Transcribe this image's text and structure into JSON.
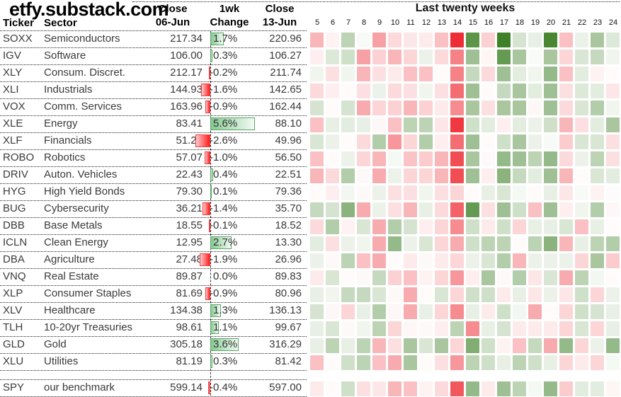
{
  "title": "etfy.substack.com",
  "header": {
    "ticker": "Ticker",
    "sector": "Sector",
    "close1_l1": "Close",
    "close1_l2": "06-Jun",
    "change_l1": "1wk",
    "change_l2": "Change",
    "close2_l1": "Close",
    "close2_l2": "13-Jun",
    "heatmap_title": "Last twenty weeks"
  },
  "weeks": [
    "5",
    "6",
    "7",
    "8",
    "9",
    "10",
    "11",
    "12",
    "13",
    "14",
    "15",
    "16",
    "17",
    "18",
    "19",
    "20",
    "21",
    "22",
    "23",
    "24"
  ],
  "colors": {
    "heat_pos": "#3f8128",
    "heat_neg": "#ee2e36",
    "bar_pos_border": "#5aa668",
    "bar_pos_from": "#86ca92",
    "bar_pos_to": "#f3faf4",
    "bar_neg_border": "#f03e3e",
    "bar_neg_from": "#ff1e1e",
    "bar_neg_to": "#ffccce"
  },
  "chart_data": {
    "type": "heatmap",
    "title": "Last twenty weeks",
    "x_labels": [
      "5",
      "6",
      "7",
      "8",
      "9",
      "10",
      "11",
      "12",
      "13",
      "14",
      "15",
      "16",
      "17",
      "18",
      "19",
      "20",
      "21",
      "22",
      "23",
      "24"
    ],
    "note": "cell values are weekly % change intensity, -1 strong red to +1 strong green"
  },
  "rows": [
    {
      "ticker": "SOXX",
      "sector": "Semiconductors",
      "close1": "217.34",
      "change": 1.7,
      "change_label": "1.7%",
      "close2": "220.96",
      "gap_before": false,
      "heat": [
        -0.35,
        -0.06,
        0.35,
        0.04,
        -0.45,
        -0.18,
        -0.12,
        -0.1,
        -0.3,
        -1.0,
        0.85,
        -0.22,
        1.0,
        0.22,
        0.12,
        0.95,
        -0.3,
        0.1,
        0.45,
        0.18
      ]
    },
    {
      "ticker": "IGV",
      "sector": "Software",
      "close1": "106.00",
      "change": 0.3,
      "change_label": "0.3%",
      "close2": "106.27",
      "gap_before": false,
      "heat": [
        -0.08,
        0.18,
        0.25,
        -0.45,
        -0.22,
        -0.35,
        -0.2,
        0.1,
        -0.18,
        -0.6,
        0.5,
        -0.05,
        0.8,
        0.45,
        0.03,
        0.45,
        -0.2,
        0.2,
        0.3,
        0.08
      ]
    },
    {
      "ticker": "XLY",
      "sector": "Consum. Discret.",
      "close1": "212.17",
      "change": -0.2,
      "change_label": "-0.2%",
      "close2": "211.74",
      "gap_before": false,
      "heat": [
        0.08,
        -0.15,
        0.08,
        -0.35,
        -0.15,
        -0.1,
        -0.3,
        -0.3,
        -0.02,
        -0.6,
        0.3,
        -0.18,
        0.5,
        0.15,
        0.08,
        0.55,
        -0.3,
        0.15,
        -0.06,
        -0.02
      ]
    },
    {
      "ticker": "XLI",
      "sector": "Industrials",
      "close1": "144.93",
      "change": -1.6,
      "change_label": "-1.6%",
      "close2": "142.65",
      "gap_before": false,
      "heat": [
        -0.18,
        -0.08,
        -0.02,
        -0.15,
        0.1,
        -0.18,
        -0.15,
        0.08,
        -0.15,
        -0.7,
        0.5,
        -0.02,
        0.3,
        0.45,
        0.15,
        0.5,
        -0.15,
        0.18,
        0.15,
        -0.12
      ]
    },
    {
      "ticker": "VOX",
      "sector": "Comm. Services",
      "close1": "163.96",
      "change": -0.9,
      "change_label": "-0.9%",
      "close2": "162.44",
      "gap_before": false,
      "heat": [
        0.22,
        -0.02,
        0.22,
        -0.4,
        -0.2,
        -0.22,
        -0.35,
        -0.22,
        -0.1,
        -0.55,
        0.45,
        -0.15,
        0.45,
        0.45,
        -0.04,
        0.5,
        -0.18,
        0.2,
        0.4,
        0.08
      ]
    },
    {
      "ticker": "XLE",
      "sector": "Energy",
      "close1": "83.41",
      "change": 5.6,
      "change_label": "5.6%",
      "close2": "88.10",
      "gap_before": false,
      "heat": [
        -0.3,
        0.12,
        0.15,
        0.12,
        -0.04,
        -0.3,
        0.35,
        0.35,
        -0.12,
        -0.95,
        0.25,
        0.15,
        -0.08,
        0.15,
        0.1,
        0.25,
        -0.35,
        -0.15,
        0.15,
        0.45
      ]
    },
    {
      "ticker": "XLF",
      "sector": "Financials",
      "close1": "51.28",
      "change": -2.6,
      "change_label": "-2.6%",
      "close2": "49.96",
      "gap_before": false,
      "heat": [
        0.2,
        0.1,
        -0.02,
        -0.18,
        0.4,
        -0.5,
        -0.2,
        0.4,
        -0.08,
        -0.7,
        0.5,
        -0.02,
        0.25,
        0.45,
        0.1,
        0.04,
        -0.25,
        0.2,
        0.2,
        -0.15
      ]
    },
    {
      "ticker": "ROBO",
      "sector": "Robotics",
      "close1": "57.07",
      "change": -1.0,
      "change_label": "-1.0%",
      "close2": "56.50",
      "gap_before": false,
      "heat": [
        -0.3,
        -0.02,
        0.1,
        -0.2,
        -0.35,
        0.05,
        -0.28,
        -0.25,
        -0.35,
        -0.85,
        0.45,
        -0.03,
        0.55,
        0.5,
        0.35,
        0.55,
        -0.18,
        0.1,
        0.35,
        -0.15
      ]
    },
    {
      "ticker": "DRIV",
      "sector": "Auton. Vehicles",
      "close1": "22.43",
      "change": 0.4,
      "change_label": "0.4%",
      "close2": "22.51",
      "gap_before": false,
      "heat": [
        -0.35,
        -0.18,
        0.4,
        -0.03,
        -0.4,
        0.1,
        -0.2,
        -0.2,
        -0.35,
        -0.85,
        0.5,
        -0.08,
        0.6,
        0.3,
        0.15,
        0.5,
        -0.35,
        -0.02,
        0.2,
        0.15
      ]
    },
    {
      "ticker": "HYG",
      "sector": "High Yield Bonds",
      "close1": "79.30",
      "change": 0.1,
      "change_label": "0.1%",
      "close2": "79.36",
      "gap_before": false,
      "heat": [
        -0.02,
        -0.08,
        0.06,
        -0.03,
        0.1,
        -0.15,
        -0.15,
        0.08,
        -0.15,
        -0.2,
        -0.02,
        0.12,
        0.2,
        0.05,
        -0.02,
        0.12,
        -0.12,
        0.04,
        -0.06,
        0.02
      ]
    },
    {
      "ticker": "BUG",
      "sector": "Cybersecurity",
      "close1": "36.21",
      "change": -1.4,
      "change_label": "-1.4%",
      "close2": "35.70",
      "gap_before": false,
      "heat": [
        0.3,
        0.22,
        0.6,
        -0.4,
        0.1,
        -0.15,
        -0.35,
        0.12,
        -0.18,
        -0.75,
        0.8,
        -0.15,
        0.5,
        0.25,
        -0.3,
        0.5,
        -0.08,
        0.08,
        0.4,
        -0.04
      ]
    },
    {
      "ticker": "DBB",
      "sector": "Base Metals",
      "close1": "18.55",
      "change": -0.1,
      "change_label": "-0.1%",
      "close2": "18.52",
      "gap_before": false,
      "heat": [
        -0.18,
        0.4,
        -0.06,
        0.2,
        -0.4,
        0.4,
        0.22,
        -0.08,
        -0.2,
        -0.55,
        0.25,
        -0.1,
        0.25,
        -0.2,
        0.12,
        0.12,
        0.2,
        -0.3,
        0.12,
        -0.02
      ]
    },
    {
      "ticker": "ICLN",
      "sector": "Clean Energy",
      "close1": "12.95",
      "change": 2.7,
      "change_label": "2.7%",
      "close2": "13.30",
      "gap_before": false,
      "heat": [
        0.15,
        -0.15,
        0.1,
        0.08,
        -0.4,
        0.55,
        0.1,
        0.2,
        -0.2,
        -0.4,
        0.25,
        0.35,
        0.35,
        -0.02,
        0.35,
        0.6,
        -0.35,
        0.12,
        0.35,
        0.4
      ]
    },
    {
      "ticker": "DBA",
      "sector": "Agriculture",
      "close1": "27.48",
      "change": -1.9,
      "change_label": "-1.9%",
      "close2": "26.96",
      "gap_before": false,
      "heat": [
        0.1,
        -0.03,
        0.35,
        -0.3,
        -0.4,
        -0.02,
        -0.1,
        -0.03,
        -0.1,
        -0.2,
        0.1,
        0.2,
        0.4,
        -0.35,
        0.1,
        0.1,
        0.1,
        -0.2,
        0.45,
        -0.25
      ]
    },
    {
      "ticker": "VNQ",
      "sector": "Real Estate",
      "close1": "89.87",
      "change": 0.0,
      "change_label": "0.0%",
      "close2": "89.83",
      "gap_before": false,
      "heat": [
        -0.1,
        0.2,
        -0.02,
        -0.03,
        0.3,
        -0.22,
        -0.3,
        -0.06,
        -0.2,
        -0.5,
        -0.08,
        0.45,
        -0.03,
        0.4,
        -0.12,
        0.2,
        -0.4,
        0.35,
        0.06,
        -0.02
      ]
    },
    {
      "ticker": "XLP",
      "sector": "Consumer Staples",
      "close1": "81.69",
      "change": -0.9,
      "change_label": "-0.9%",
      "close2": "80.96",
      "gap_before": false,
      "heat": [
        0.12,
        0.08,
        0.3,
        0.3,
        0.2,
        -0.03,
        -0.4,
        -0.02,
        0.2,
        -0.2,
        0.25,
        0.25,
        -0.1,
        0.12,
        -0.12,
        0.1,
        -0.12,
        0.25,
        -0.2,
        0.1
      ]
    },
    {
      "ticker": "XLV",
      "sector": "Healthcare",
      "close1": "134.38",
      "change": 1.3,
      "change_label": "1.3%",
      "close2": "136.13",
      "gap_before": false,
      "heat": [
        0.22,
        -0.04,
        -0.2,
        0.12,
        0.4,
        -0.04,
        -0.4,
        0.12,
        -0.2,
        -0.55,
        0.12,
        -0.1,
        0.25,
        0.06,
        -0.4,
        -0.02,
        -0.2,
        0.25,
        0.22,
        0.12
      ]
    },
    {
      "ticker": "TLH",
      "sector": "10-20yr Treasuries",
      "close1": "98.61",
      "change": 1.1,
      "change_label": "1.1%",
      "close2": "99.67",
      "gap_before": false,
      "heat": [
        0.12,
        0.2,
        -0.03,
        0.08,
        0.35,
        -0.2,
        -0.04,
        -0.03,
        -0.08,
        0.35,
        -0.55,
        0.12,
        0.22,
        -0.1,
        -0.1,
        -0.1,
        -0.2,
        0.2,
        -0.2,
        0.12
      ]
    },
    {
      "ticker": "GLD",
      "sector": "Gold",
      "close1": "305.18",
      "change": 3.6,
      "change_label": "3.6%",
      "close2": "316.29",
      "gap_before": false,
      "heat": [
        0.12,
        0.35,
        0.12,
        0.35,
        -0.35,
        -0.15,
        0.45,
        0.2,
        0.45,
        -0.2,
        0.65,
        0.25,
        -0.06,
        -0.3,
        0.3,
        -0.4,
        0.55,
        -0.2,
        0.1,
        0.55
      ]
    },
    {
      "ticker": "XLU",
      "sector": "Utilities",
      "close1": "81.19",
      "change": 0.3,
      "change_label": "0.3%",
      "close2": "81.42",
      "gap_before": false,
      "heat": [
        -0.3,
        -0.02,
        0.25,
        0.35,
        -0.3,
        -0.4,
        0.45,
        -0.02,
        -0.15,
        -0.5,
        0.35,
        0.25,
        0.12,
        0.35,
        0.25,
        0.12,
        -0.2,
        -0.1,
        -0.2,
        0.05
      ]
    },
    {
      "ticker": "SPY",
      "sector": "our benchmark",
      "close1": "599.14",
      "change": -0.4,
      "change_label": "-0.4%",
      "close2": "597.00",
      "gap_before": true,
      "heat": [
        -0.1,
        -0.02,
        0.25,
        -0.15,
        -0.12,
        -0.35,
        -0.3,
        -0.06,
        -0.18,
        -0.8,
        0.55,
        -0.1,
        0.5,
        0.35,
        0.05,
        0.55,
        -0.25,
        0.15,
        0.15,
        -0.05
      ]
    }
  ]
}
